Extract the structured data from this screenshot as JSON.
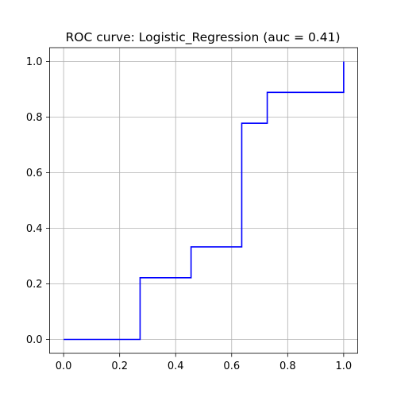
{
  "chart_data": {
    "type": "line",
    "title": "ROC curve: Logistic_Regression (auc = 0.41)",
    "xlabel": "",
    "ylabel": "",
    "xlim": [
      -0.05,
      1.05
    ],
    "ylim": [
      -0.05,
      1.05
    ],
    "x_ticks": [
      "0.0",
      "0.2",
      "0.4",
      "0.6",
      "0.8",
      "1.0"
    ],
    "y_ticks": [
      "0.0",
      "0.2",
      "0.4",
      "0.6",
      "0.8",
      "1.0"
    ],
    "grid": true,
    "series": [
      {
        "color": "#0000ff",
        "x": [
          0.0,
          0.273,
          0.273,
          0.455,
          0.455,
          0.636,
          0.636,
          0.727,
          0.727,
          1.0,
          1.0
        ],
        "y": [
          0.0,
          0.0,
          0.222,
          0.222,
          0.333,
          0.333,
          0.778,
          0.778,
          0.889,
          0.889,
          1.0
        ]
      }
    ]
  }
}
